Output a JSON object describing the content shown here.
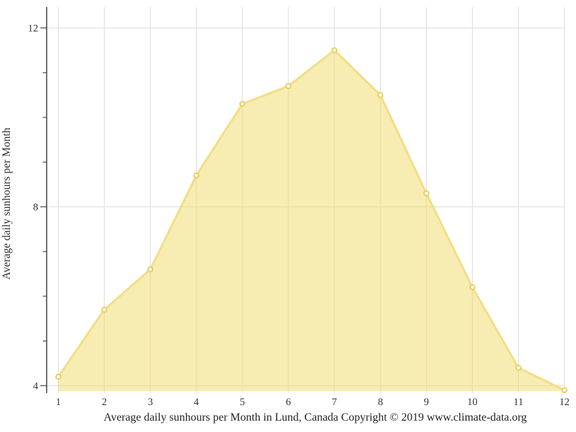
{
  "chart_data": {
    "type": "area",
    "title": "",
    "x": [
      1,
      2,
      3,
      4,
      5,
      6,
      7,
      8,
      9,
      10,
      11,
      12
    ],
    "x_tick_labels": [
      "1",
      "2",
      "3",
      "4",
      "5",
      "6",
      "7",
      "8",
      "9",
      "10",
      "11",
      "12"
    ],
    "series": [
      {
        "name": "Average daily sunhours",
        "values": [
          4.2,
          5.7,
          6.6,
          8.7,
          10.3,
          10.7,
          11.5,
          10.5,
          8.3,
          6.2,
          4.4,
          3.9
        ]
      }
    ],
    "xlabel": "",
    "ylabel": "Average daily sunhours per Month",
    "yticks": [
      4,
      8,
      12
    ],
    "ytick_labels": [
      "4",
      "8",
      "12"
    ],
    "minor_ytick_step": 1,
    "ylim": [
      3.84,
      12.55
    ],
    "grid": true,
    "legend": "none",
    "caption": "Average daily sunhours per Month in Lund, Canada Copyright © 2019 www.climate-data.org",
    "colors": {
      "area_fill": "rgba(240,217,102,0.5)",
      "line": "#f2de84",
      "marker_fill": "#ffffff",
      "marker_stroke": "#eacd55",
      "grid_vertical": "#dcdcdc",
      "grid_horizontal": "#e6e6e6",
      "axis": "#4a4a4a",
      "text": "#333333"
    }
  }
}
